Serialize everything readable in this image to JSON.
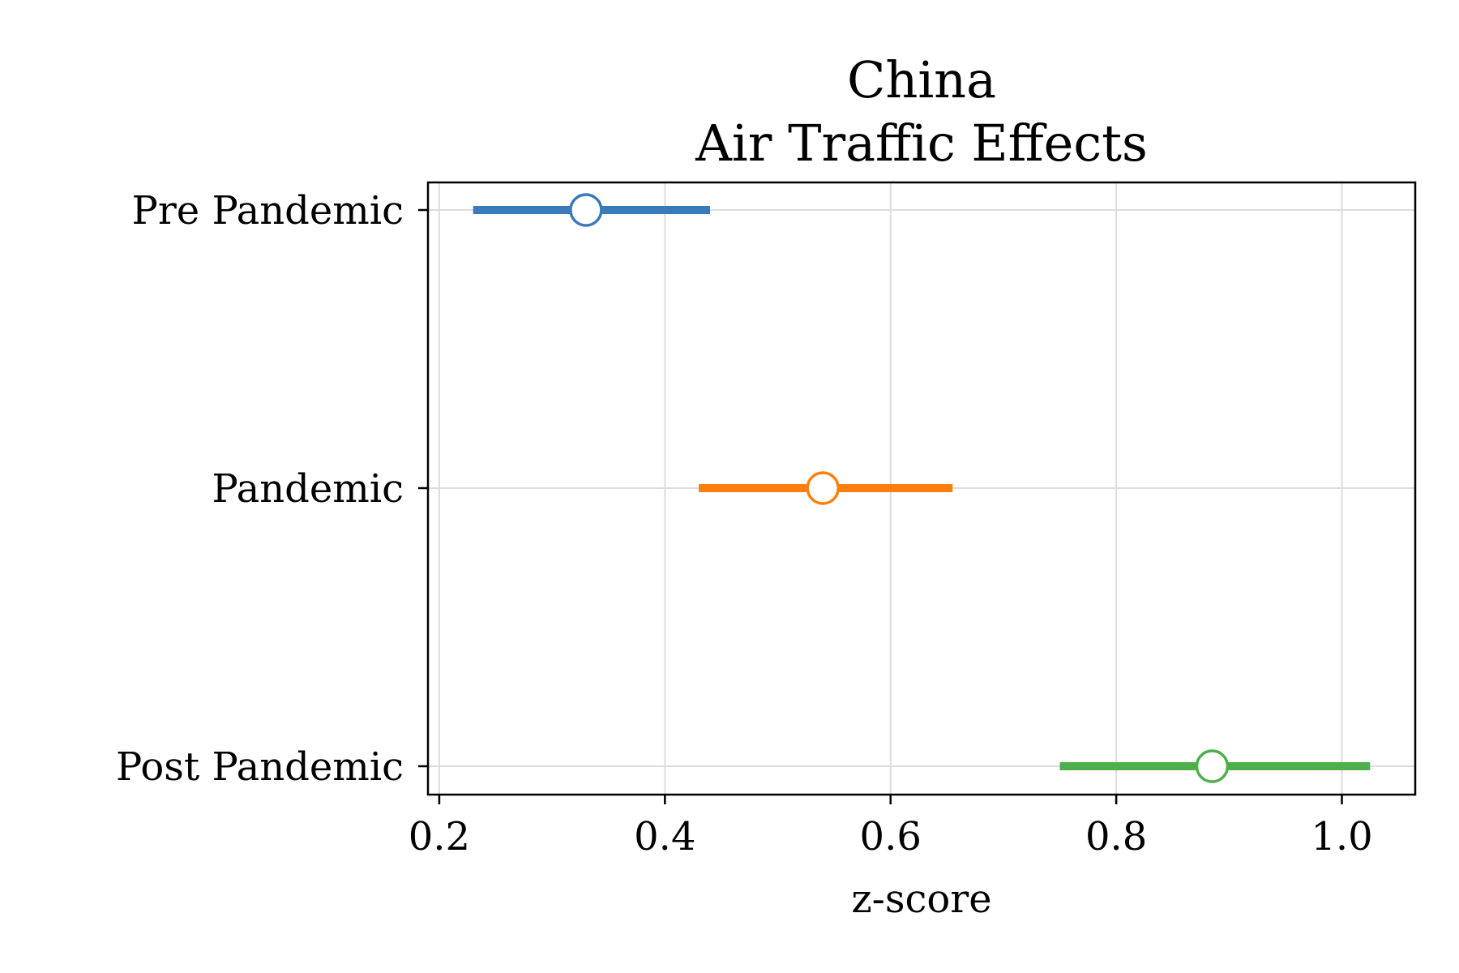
{
  "chart_data": {
    "type": "scatter",
    "title": "China\nAir Traffic Effects",
    "title_lines": [
      "China",
      "Air Traffic Effects"
    ],
    "xlabel": "z-score",
    "ylabel": "",
    "xlim": [
      0.19,
      1.065
    ],
    "xticks": [
      0.2,
      0.4,
      0.6,
      0.8,
      1.0
    ],
    "xtick_labels": [
      "0.2",
      "0.4",
      "0.6",
      "0.8",
      "1.0"
    ],
    "categories": [
      "Pre Pandemic",
      "Pandemic",
      "Post Pandemic"
    ],
    "grid": true,
    "series": [
      {
        "category": "Pre Pandemic",
        "estimate": 0.33,
        "ci_low": 0.23,
        "ci_high": 0.44,
        "color": "#3a7ab8"
      },
      {
        "category": "Pandemic",
        "estimate": 0.54,
        "ci_low": 0.43,
        "ci_high": 0.655,
        "color": "#ff7f0e"
      },
      {
        "category": "Post Pandemic",
        "estimate": 0.885,
        "ci_low": 0.75,
        "ci_high": 1.025,
        "color": "#4daf4a"
      }
    ]
  }
}
